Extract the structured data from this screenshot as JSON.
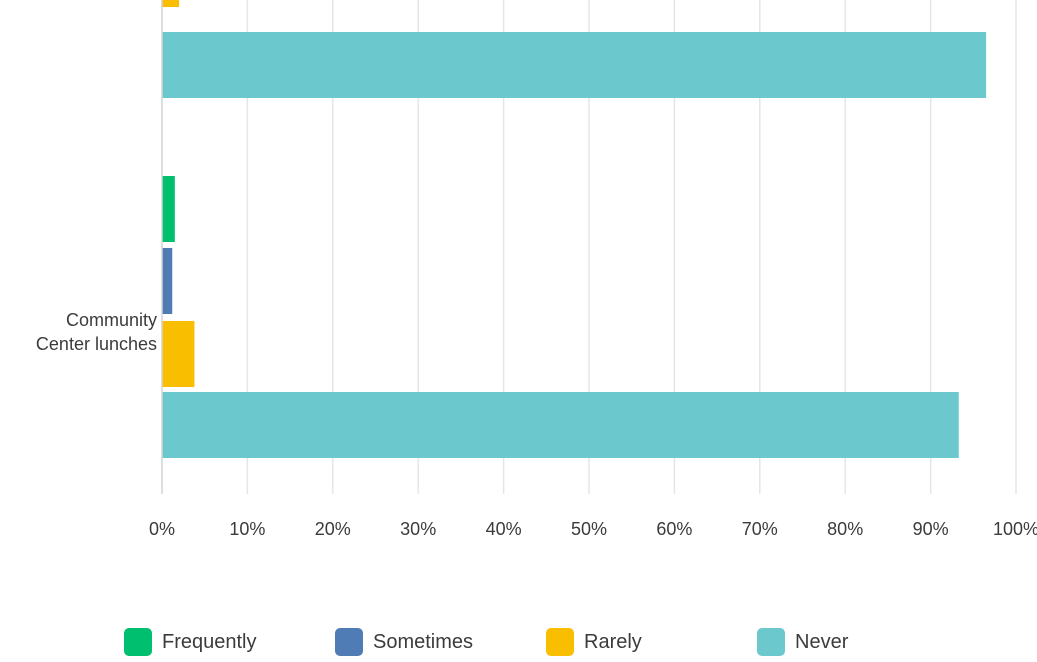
{
  "chart_data": {
    "type": "bar",
    "orientation": "horizontal",
    "categories": [
      "",
      "Community Center lunches"
    ],
    "series": [
      {
        "name": "Frequently",
        "color": "#00bf6f",
        "values": [
          null,
          1.5
        ]
      },
      {
        "name": "Sometimes",
        "color": "#507cb6",
        "values": [
          null,
          1.2
        ]
      },
      {
        "name": "Rarely",
        "color": "#f9be00",
        "values": [
          2.0,
          3.8
        ]
      },
      {
        "name": "Never",
        "color": "#6bc8cd",
        "values": [
          96.5,
          93.3
        ]
      }
    ],
    "category_lines": [
      [],
      [
        "Community",
        "Center lunches"
      ]
    ],
    "xlim": [
      0,
      100
    ],
    "x_ticks": [
      "0%",
      "10%",
      "20%",
      "30%",
      "40%",
      "50%",
      "60%",
      "70%",
      "80%",
      "90%",
      "100%"
    ],
    "grid": true,
    "legend_position": "bottom"
  }
}
